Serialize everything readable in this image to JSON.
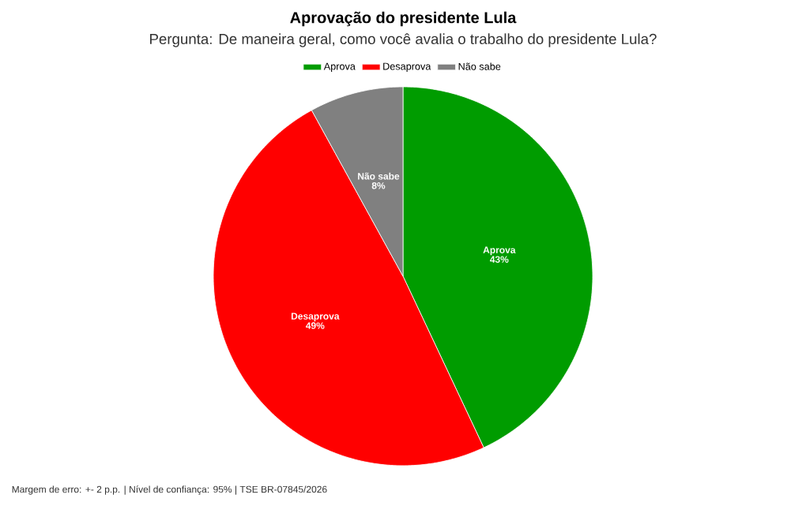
{
  "chart_data": {
    "type": "pie",
    "title": "Aprovação do presidente Lula",
    "subtitle": "Pergunta: De maneira geral, como você avalia o trabalho do presidente Lula?",
    "categories": [
      "Aprova",
      "Desaprova",
      "Não sabe"
    ],
    "values": [
      43,
      49,
      8
    ],
    "value_labels": [
      "43%",
      "49%",
      "8%"
    ],
    "colors": [
      "#009c00",
      "#ff0000",
      "#808080"
    ],
    "legend": "top",
    "annotations": [
      "Margem de erro: +- 2 p.p. | Nível de confiança: 95% | TSE BR-07845/2026"
    ]
  }
}
